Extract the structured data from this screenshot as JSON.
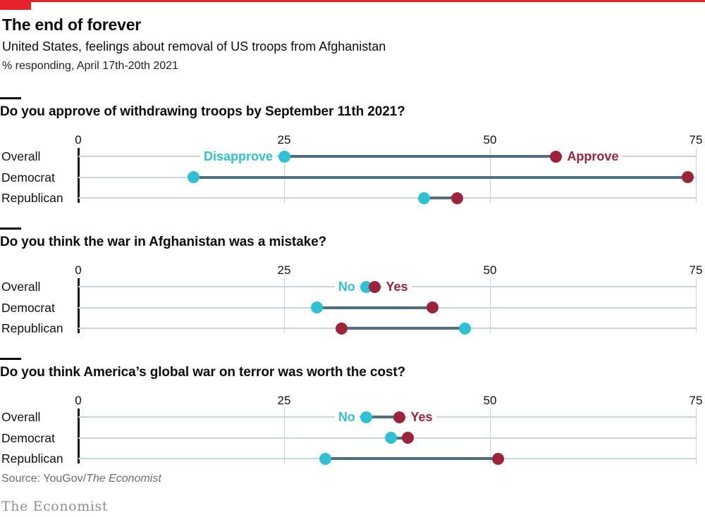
{
  "header": {
    "title": "The end of forever",
    "subtitle": "United States, feelings about removal of US troops from Afghanistan",
    "note": "% responding, April 17th-20th 2021"
  },
  "chart_data": [
    {
      "type": "dumbbell",
      "title": "Do you approve of withdrawing troops by September 11th 2021?",
      "categories": [
        "Overall",
        "Democrat",
        "Republican"
      ],
      "xlim": [
        0,
        75
      ],
      "xticks": [
        0,
        25,
        50,
        75
      ],
      "grid": true,
      "series": [
        {
          "name": "Disapprove",
          "color_key": "cyan",
          "values": [
            25,
            14,
            42
          ]
        },
        {
          "name": "Approve",
          "color_key": "claret",
          "values": [
            58,
            74,
            46
          ]
        }
      ]
    },
    {
      "type": "dumbbell",
      "title": "Do you think the war in Afghanistan was a mistake?",
      "categories": [
        "Overall",
        "Democrat",
        "Republican"
      ],
      "xlim": [
        0,
        75
      ],
      "xticks": [
        0,
        25,
        50,
        75
      ],
      "grid": true,
      "series": [
        {
          "name": "No",
          "color_key": "cyan",
          "values": [
            35,
            29,
            47
          ]
        },
        {
          "name": "Yes",
          "color_key": "claret",
          "values": [
            36,
            43,
            32
          ]
        }
      ]
    },
    {
      "type": "dumbbell",
      "title": "Do you think America’s global war on terror was worth the cost?",
      "categories": [
        "Overall",
        "Democrat",
        "Republican"
      ],
      "xlim": [
        0,
        75
      ],
      "xticks": [
        0,
        25,
        50,
        75
      ],
      "grid": true,
      "series": [
        {
          "name": "No",
          "color_key": "cyan",
          "values": [
            35,
            38,
            30
          ]
        },
        {
          "name": "Yes",
          "color_key": "claret",
          "values": [
            39,
            40,
            51
          ]
        }
      ]
    }
  ],
  "footer": {
    "source_prefix": "Source: YouGov/",
    "source_publication": "The Economist",
    "wordmark": "The Economist"
  },
  "colors": {
    "brand_red": "#E7222B",
    "cyan": "#2FC0D4",
    "claret": "#9C2339",
    "connector": "#4F6E7E",
    "row_line": "#C9D5DA",
    "grid_line": "#C3D0D6",
    "axis_line": "#1A1A1A"
  }
}
